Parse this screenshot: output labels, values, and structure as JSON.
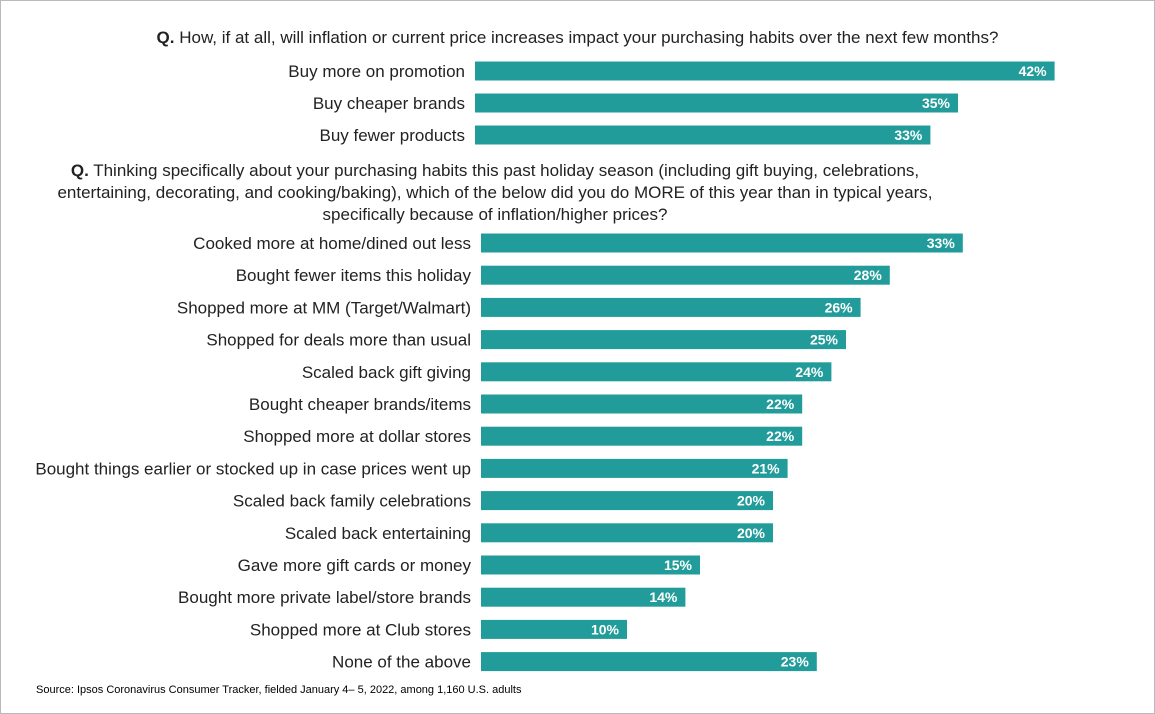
{
  "question1": {
    "prefix": "Q.",
    "text": " How, if at all, will inflation or current price increases impact your purchasing habits over the next few months?"
  },
  "question2": {
    "prefix": "Q.",
    "text": " Thinking specifically about your purchasing habits this past holiday season (including gift buying, celebrations, entertaining, decorating, and cooking/baking), which of the below did you do MORE of this year than in typical years, specifically because of inflation/higher prices?"
  },
  "source": "Source: Ipsos Coronavirus Consumer Tracker, fielded January 4– 5, 2022, among 1,160 U.S. adults",
  "bar_color": "#219c9a",
  "chart_data": [
    {
      "type": "bar",
      "orientation": "horizontal",
      "categories": [
        "Buy more on promotion",
        "Buy cheaper brands",
        "Buy fewer products"
      ],
      "values": [
        42,
        35,
        33
      ],
      "labels": [
        "42%",
        "35%",
        "33%"
      ],
      "unit": "%"
    },
    {
      "type": "bar",
      "orientation": "horizontal",
      "categories": [
        "Cooked more at home/dined out less",
        "Bought fewer items this holiday",
        "Shopped more at MM (Target/Walmart)",
        "Shopped for deals more than usual",
        "Scaled back gift giving",
        "Bought cheaper brands/items",
        "Shopped more at dollar stores",
        "Bought things earlier or stocked up in case prices went up",
        "Scaled back family celebrations",
        "Scaled back entertaining",
        "Gave more gift cards or money",
        "Bought more private label/store brands",
        "Shopped more at Club stores",
        "None of the above"
      ],
      "values": [
        33,
        28,
        26,
        25,
        24,
        22,
        22,
        21,
        20,
        20,
        15,
        14,
        10,
        23
      ],
      "labels": [
        "33%",
        "28%",
        "26%",
        "25%",
        "24%",
        "22%",
        "22%",
        "21%",
        "20%",
        "20%",
        "15%",
        "14%",
        "10%",
        "23%"
      ],
      "unit": "%"
    }
  ]
}
